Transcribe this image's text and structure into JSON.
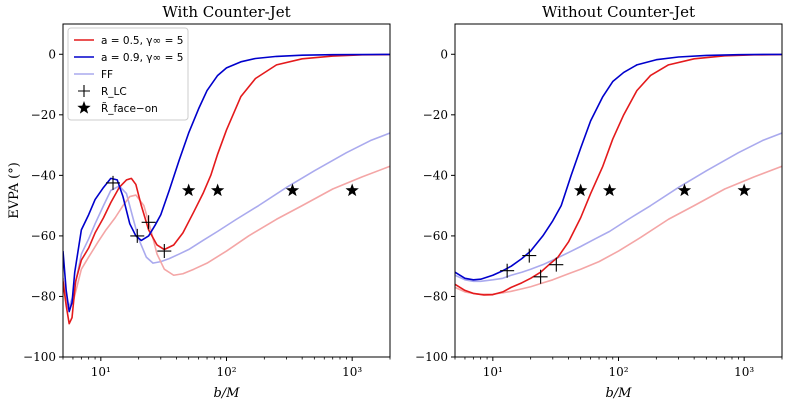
{
  "chart_data": [
    {
      "type": "line",
      "title": "With Counter-Jet",
      "xlabel": "b/M",
      "ylabel": "EVPA (°)",
      "xscale": "log",
      "xlim": [
        5,
        2000
      ],
      "ylim": [
        -100,
        10
      ],
      "xticks": [
        10,
        100,
        1000
      ],
      "xtick_labels": [
        "10¹",
        "10²",
        "10³"
      ],
      "yticks": [
        0,
        -20,
        -40,
        -60,
        -80,
        -100
      ],
      "ytick_labels": [
        "0",
        "−20",
        "−40",
        "−60",
        "−80",
        "−100"
      ],
      "legend": {
        "placement": "top-left",
        "entries": [
          {
            "label": "a = 0.5, γ∞ = 5",
            "color": "#e41a1c",
            "kind": "line"
          },
          {
            "label": "a = 0.9, γ∞ = 5",
            "color": "#0000cc",
            "kind": "line"
          },
          {
            "label": "FF",
            "color": "#aaaaee",
            "kind": "line"
          },
          {
            "label": "R_LC",
            "color": "#000000",
            "kind": "plus"
          },
          {
            "label": "R̃_face−on",
            "color": "#000000",
            "kind": "star"
          }
        ]
      },
      "series": [
        {
          "name": "a = 0.5, γ∞ = 5",
          "color": "#e41a1c",
          "x": [
            5,
            5.3,
            5.6,
            5.9,
            6.3,
            7,
            8,
            9,
            10.5,
            12,
            14,
            16,
            17.5,
            19,
            21,
            24,
            28,
            32,
            38,
            45,
            55,
            65,
            75,
            85,
            100,
            130,
            170,
            250,
            400,
            700,
            1200,
            2000
          ],
          "y": [
            -75,
            -83,
            -89,
            -87,
            -75,
            -68,
            -64,
            -59,
            -54,
            -49,
            -44,
            -41.5,
            -41,
            -43,
            -50,
            -58,
            -63,
            -64.5,
            -63,
            -59,
            -52,
            -46,
            -40,
            -33,
            -25,
            -14,
            -8,
            -3.5,
            -1.5,
            -0.6,
            -0.2,
            -0.1
          ]
        },
        {
          "name": "a = 0.9, γ∞ = 5",
          "color": "#0000cc",
          "x": [
            5,
            5.3,
            5.6,
            5.9,
            6.2,
            7,
            8,
            9,
            10.5,
            12,
            13.5,
            15,
            17,
            19,
            21,
            24,
            27,
            30,
            35,
            42,
            50,
            60,
            70,
            85,
            100,
            130,
            170,
            250,
            400,
            700,
            1200,
            2000
          ],
          "y": [
            -65,
            -78,
            -85,
            -82,
            -72,
            -58,
            -53,
            -48,
            -44,
            -41,
            -41.5,
            -47,
            -56,
            -60,
            -61.5,
            -60,
            -56.5,
            -53,
            -45,
            -35,
            -26,
            -18,
            -12,
            -7,
            -4.5,
            -2.5,
            -1.4,
            -0.7,
            -0.3,
            -0.15,
            -0.1,
            -0.05
          ]
        },
        {
          "name": "FF",
          "color": "#aaaaee",
          "x": [
            5,
            5.5,
            6,
            7,
            8,
            9,
            10.5,
            12,
            14,
            16,
            18,
            20,
            23,
            26,
            30,
            35,
            42,
            50,
            65,
            85,
            120,
            180,
            300,
            500,
            900,
            1400,
            2000
          ],
          "y": [
            -74,
            -84,
            -80,
            -66,
            -61,
            -56,
            -50,
            -45,
            -43.5,
            -46,
            -54,
            -61,
            -67,
            -69,
            -68.5,
            -67.5,
            -66,
            -64.5,
            -61.5,
            -58.5,
            -54.5,
            -50,
            -44,
            -38.5,
            -32.5,
            -28.5,
            -26
          ]
        },
        {
          "name": "FF (a = 0.5)",
          "color": "#f4a6a6",
          "x": [
            5,
            5.5,
            6,
            7,
            8,
            9.5,
            11,
            13,
            15,
            17,
            19,
            22,
            25,
            28,
            32,
            38,
            45,
            55,
            70,
            100,
            150,
            250,
            400,
            700,
            1200,
            2000
          ],
          "y": [
            -74,
            -84,
            -82,
            -71,
            -67,
            -62,
            -58,
            -54,
            -50,
            -47,
            -46.5,
            -50,
            -58,
            -66,
            -71,
            -73,
            -72.5,
            -71,
            -69,
            -65,
            -60,
            -54.5,
            -50,
            -44.5,
            -40.5,
            -37
          ]
        }
      ],
      "markers": {
        "R_LC": {
          "x": [
            12.5,
            19.5,
            24,
            32
          ],
          "y": [
            -42.5,
            -60,
            -55.5,
            -65
          ]
        },
        "R_face_on": {
          "x": [
            50,
            85,
            335,
            1000
          ],
          "y": [
            -45,
            -45,
            -45,
            -45
          ]
        }
      }
    },
    {
      "type": "line",
      "title": "Without Counter-Jet",
      "xlabel": "b/M",
      "xscale": "log",
      "xlim": [
        5,
        2000
      ],
      "ylim": [
        -100,
        10
      ],
      "xticks": [
        10,
        100,
        1000
      ],
      "xtick_labels": [
        "10¹",
        "10²",
        "10³"
      ],
      "yticks": [
        0,
        -20,
        -40,
        -60,
        -80,
        -100
      ],
      "ytick_labels": [
        "0",
        "−20",
        "−40",
        "−60",
        "−80",
        "−100"
      ],
      "series": [
        {
          "name": "a = 0.5, γ∞ = 5",
          "color": "#e41a1c",
          "x": [
            5,
            6,
            7,
            8.5,
            10,
            12,
            14,
            17,
            20,
            24,
            28,
            33,
            40,
            50,
            60,
            75,
            90,
            110,
            140,
            180,
            250,
            400,
            700,
            1200,
            2000
          ],
          "y": [
            -76,
            -78,
            -79,
            -79.5,
            -79.4,
            -78.5,
            -77,
            -75.5,
            -74,
            -72,
            -69.5,
            -67,
            -62,
            -54,
            -46,
            -37,
            -28,
            -20,
            -12,
            -7,
            -3.5,
            -1.5,
            -0.5,
            -0.2,
            -0.1
          ]
        },
        {
          "name": "a = 0.9, γ∞ = 5",
          "color": "#0000cc",
          "x": [
            5,
            6,
            7,
            8,
            10,
            12,
            14,
            17,
            20,
            25,
            30,
            35,
            42,
            50,
            60,
            75,
            90,
            110,
            140,
            200,
            300,
            500,
            900,
            1500,
            2000
          ],
          "y": [
            -72,
            -74,
            -74.5,
            -74.3,
            -73,
            -71.5,
            -70,
            -67.5,
            -65,
            -60,
            -55,
            -50,
            -40,
            -31,
            -22,
            -14,
            -9,
            -6,
            -3.5,
            -1.8,
            -0.9,
            -0.4,
            -0.15,
            -0.05,
            -0.05
          ]
        },
        {
          "name": "FF",
          "color": "#aaaaee",
          "x": [
            5,
            6,
            7,
            8,
            10,
            12,
            14,
            17,
            20,
            25,
            30,
            40,
            50,
            65,
            85,
            120,
            180,
            300,
            500,
            900,
            1400,
            2000
          ],
          "y": [
            -73,
            -74.5,
            -75,
            -75,
            -74.5,
            -74,
            -73,
            -72,
            -71,
            -69.5,
            -68,
            -65.5,
            -63.5,
            -61,
            -58.5,
            -54.5,
            -50,
            -44,
            -38.5,
            -32.5,
            -28.5,
            -26
          ]
        },
        {
          "name": "FF (a = 0.5)",
          "color": "#f4a6a6",
          "x": [
            5,
            6,
            7,
            8,
            10,
            12,
            14,
            17,
            20,
            25,
            30,
            40,
            50,
            70,
            100,
            150,
            250,
            400,
            700,
            1200,
            2000
          ],
          "y": [
            -77,
            -78.5,
            -79,
            -79.3,
            -79.2,
            -78.8,
            -78.3,
            -77.5,
            -76.8,
            -75.5,
            -74.5,
            -72.5,
            -71,
            -68.5,
            -65,
            -60.5,
            -54.5,
            -50,
            -44.5,
            -40.5,
            -37
          ]
        }
      ],
      "markers": {
        "R_LC": {
          "x": [
            13,
            19.5,
            24,
            32
          ],
          "y": [
            -71.5,
            -66.5,
            -73.5,
            -69.5
          ]
        },
        "R_face_on": {
          "x": [
            50,
            85,
            335,
            1000
          ],
          "y": [
            -45,
            -45,
            -45,
            -45
          ]
        }
      }
    }
  ]
}
